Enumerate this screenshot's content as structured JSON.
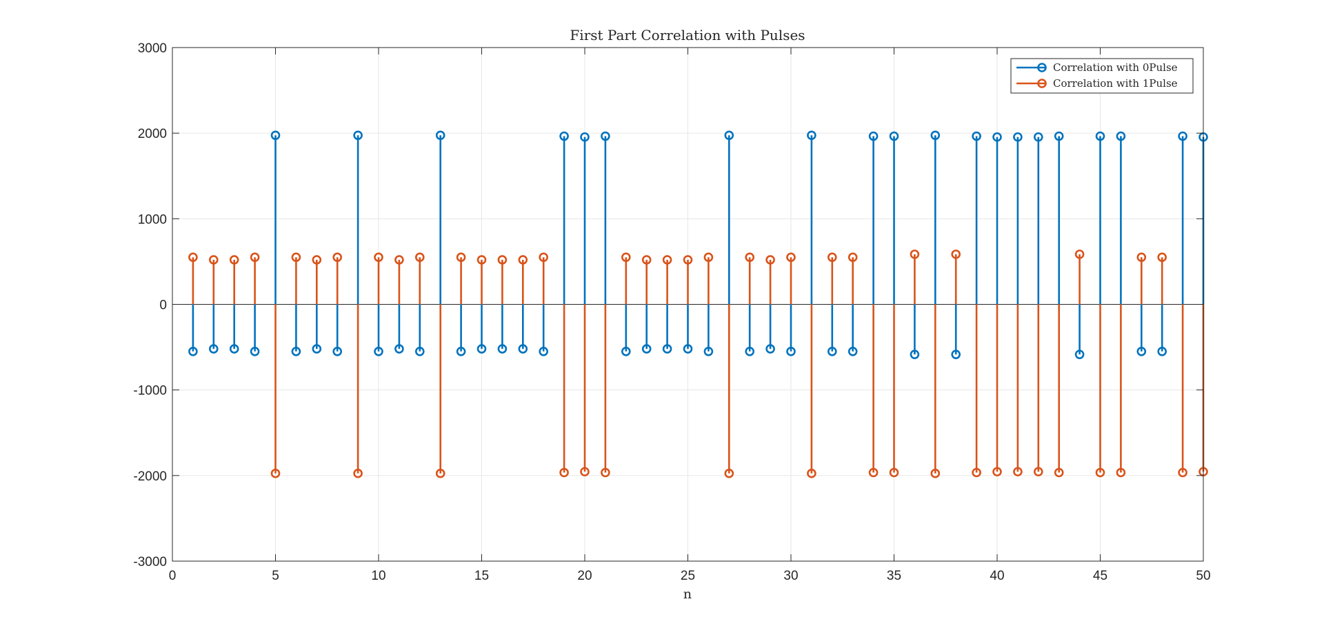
{
  "chart_data": {
    "type": "stem",
    "title": "First Part Correlation with Pulses",
    "xlabel": "n",
    "ylabel": "",
    "xlim": [
      0,
      50
    ],
    "ylim": [
      -3000,
      3000
    ],
    "xticks": [
      "0",
      "5",
      "10",
      "15",
      "20",
      "25",
      "30",
      "35",
      "40",
      "45",
      "50"
    ],
    "yticks": [
      "3000",
      "2000",
      "1000",
      "0",
      "-1000",
      "-2000",
      "-3000"
    ],
    "grid": true,
    "legend_position": "top-right",
    "x": [
      1,
      2,
      3,
      4,
      5,
      6,
      7,
      8,
      9,
      10,
      11,
      12,
      13,
      14,
      15,
      16,
      17,
      18,
      19,
      20,
      21,
      22,
      23,
      24,
      25,
      26,
      27,
      28,
      29,
      30,
      31,
      32,
      33,
      34,
      35,
      36,
      37,
      38,
      39,
      40,
      41,
      42,
      43,
      44,
      45,
      46,
      47,
      48,
      49,
      50
    ],
    "series": [
      {
        "name": "Correlation with 0Pulse",
        "color": "#0072BD",
        "values": [
          -550,
          -520,
          -520,
          -550,
          1975,
          -550,
          -520,
          -550,
          1975,
          -550,
          -520,
          -550,
          1975,
          -550,
          -520,
          -520,
          -520,
          -550,
          1965,
          1955,
          1965,
          -550,
          -520,
          -520,
          -520,
          -550,
          1975,
          -550,
          -520,
          -550,
          1975,
          -550,
          -550,
          1965,
          1965,
          -585,
          1975,
          -585,
          1965,
          1955,
          1955,
          1955,
          1965,
          -585,
          1965,
          1965,
          -550,
          -550,
          1965,
          1955
        ]
      },
      {
        "name": "Correlation with 1Pulse",
        "color": "#D95319",
        "values": [
          550,
          520,
          520,
          550,
          -1975,
          550,
          520,
          550,
          -1975,
          550,
          520,
          550,
          -1975,
          550,
          520,
          520,
          520,
          550,
          -1965,
          -1955,
          -1965,
          550,
          520,
          520,
          520,
          550,
          -1975,
          550,
          520,
          550,
          -1975,
          550,
          550,
          -1965,
          -1965,
          585,
          -1975,
          585,
          -1965,
          -1955,
          -1955,
          -1955,
          -1965,
          585,
          -1965,
          -1965,
          550,
          550,
          -1965,
          -1955
        ]
      }
    ]
  }
}
